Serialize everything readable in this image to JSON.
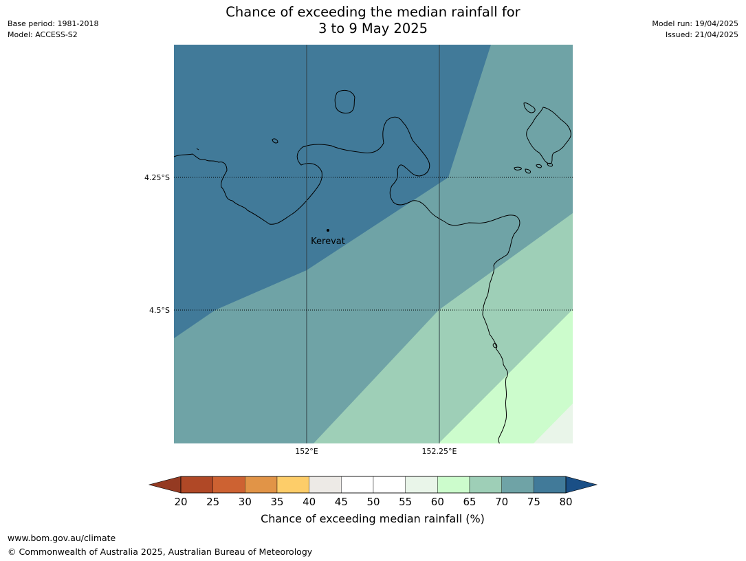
{
  "header": {
    "title_line1": "Chance of exceeding the median rainfall for",
    "title_line2": "3 to 9 May 2025",
    "base_period": "Base period: 1981-2018",
    "model": "Model: ACCESS-S2",
    "model_run": "Model run: 19/04/2025",
    "issued": "Issued: 21/04/2025"
  },
  "map": {
    "lat_labels": [
      "4.25°S",
      "4.5°S"
    ],
    "lon_labels": [
      "152°E",
      "152.25°E"
    ],
    "place_label": "Kerevat",
    "category_colors": {
      "65-70": "#9ecfb7",
      "70-75": "#6fa3a6",
      "75-80": "#417a99",
      "60-65": "#ccfccc",
      "55-60": "#e9f5e9"
    }
  },
  "colorbar": {
    "label": "Chance of exceeding median rainfall (%)",
    "ticks": [
      "20",
      "25",
      "30",
      "35",
      "40",
      "45",
      "50",
      "55",
      "60",
      "65",
      "70",
      "75",
      "80"
    ],
    "low_extend_color": "#943a22",
    "high_extend_color": "#1a4f86",
    "colors": [
      "#b04826",
      "#cd6232",
      "#e19447",
      "#fdcd69",
      "#edeae6",
      "#ffffff",
      "#ffffff",
      "#e9f5e9",
      "#ccfccc",
      "#9ecfb7",
      "#6fa3a6",
      "#417a99"
    ]
  },
  "footer": {
    "url": "www.bom.gov.au/climate",
    "copyright": "© Commonwealth of Australia 2025, Australian Bureau of Meteorology"
  }
}
